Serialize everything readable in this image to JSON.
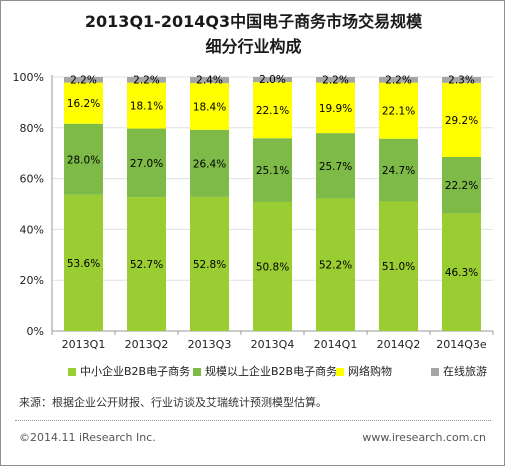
{
  "title_line1": "2013Q1-2014Q3中国电子商务市场交易规模",
  "title_line2": "细分行业构成",
  "chart_data": {
    "type": "bar",
    "stacked": true,
    "categories": [
      "2013Q1",
      "2013Q2",
      "2013Q3",
      "2013Q4",
      "2014Q1",
      "2014Q2",
      "2014Q3e"
    ],
    "series": [
      {
        "name": "中小企业B2B电子商务",
        "color": "#9acd32",
        "values": [
          53.6,
          52.7,
          52.8,
          50.8,
          52.2,
          51.0,
          46.3
        ]
      },
      {
        "name": "规模以上企业B2B电子商务",
        "color": "#7dba48",
        "values": [
          28.0,
          27.0,
          26.4,
          25.1,
          25.7,
          24.7,
          22.2
        ]
      },
      {
        "name": "网络购物",
        "color": "#ffff00",
        "values": [
          16.2,
          18.1,
          18.4,
          22.1,
          19.9,
          22.1,
          29.2
        ]
      },
      {
        "name": "在线旅游",
        "color": "#a6a6a6",
        "values": [
          2.2,
          2.2,
          2.4,
          2.0,
          2.2,
          2.2,
          2.3
        ]
      }
    ],
    "yticks": [
      "0%",
      "20%",
      "40%",
      "60%",
      "80%",
      "100%"
    ],
    "ylim": [
      0,
      100
    ],
    "grid": true,
    "legend": "bottom"
  },
  "source": "来源：根据企业公开财报、行业访谈及艾瑞统计预测模型估算。",
  "footer_left": "©2014.11 iResearch Inc.",
  "footer_right": "www.iresearch.com.cn"
}
